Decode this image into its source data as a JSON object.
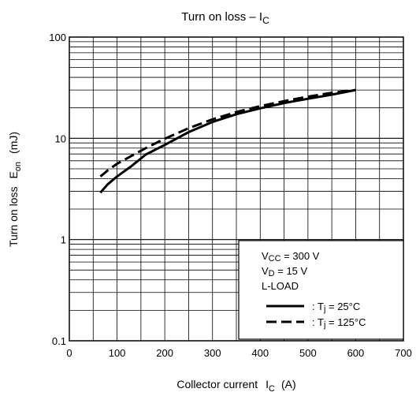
{
  "chart_data": {
    "type": "line",
    "title": "Turn on loss – I",
    "title_sub": "C",
    "xlabel": "Collector current",
    "xlabel_symbol": "I",
    "xlabel_symbol_sub": "C",
    "xlabel_unit": "(A)",
    "ylabel": "Turn on loss",
    "ylabel_symbol": "E",
    "ylabel_symbol_sub": "on",
    "ylabel_unit": "(mJ)",
    "xlim": [
      0,
      700
    ],
    "ylim": [
      0.1,
      100
    ],
    "yscale": "log",
    "grid": true,
    "x_ticks": [
      "0",
      "100",
      "200",
      "300",
      "400",
      "500",
      "600",
      "700"
    ],
    "y_ticks": [
      "0.1",
      "1",
      "10",
      "100"
    ],
    "series": [
      {
        "name": "T_j = 25°C",
        "style": "solid",
        "x": [
          65,
          80,
          100,
          130,
          160,
          200,
          250,
          300,
          350,
          400,
          450,
          500,
          550,
          600
        ],
        "y": [
          2.9,
          3.5,
          4.2,
          5.3,
          6.9,
          8.6,
          11.5,
          14.5,
          17.3,
          19.8,
          22.3,
          24.6,
          27.0,
          30.0
        ]
      },
      {
        "name": "T_j = 125°C",
        "style": "dashed",
        "x": [
          65,
          80,
          100,
          130,
          160,
          200,
          250,
          300,
          350,
          400,
          450,
          500,
          550,
          600
        ],
        "y": [
          4.2,
          4.8,
          5.6,
          6.7,
          8.0,
          9.9,
          12.6,
          15.4,
          18.2,
          20.8,
          23.3,
          25.8,
          28.2,
          30.0
        ]
      }
    ],
    "legend": {
      "placement": "bottom-right",
      "conditions": [
        {
          "sym": "V",
          "sub": "CC",
          "rest": " = 300 V"
        },
        {
          "sym": "V",
          "sub": "D",
          "rest": " = 15 V"
        },
        {
          "sym": "L-LOAD",
          "sub": "",
          "rest": ""
        }
      ],
      "entries": [
        {
          "prefix": ": T",
          "sub": "j",
          "rest": " = 25°C",
          "style": "solid"
        },
        {
          "prefix": ": T",
          "sub": "j",
          "rest": " = 125°C",
          "style": "dashed"
        }
      ]
    }
  }
}
